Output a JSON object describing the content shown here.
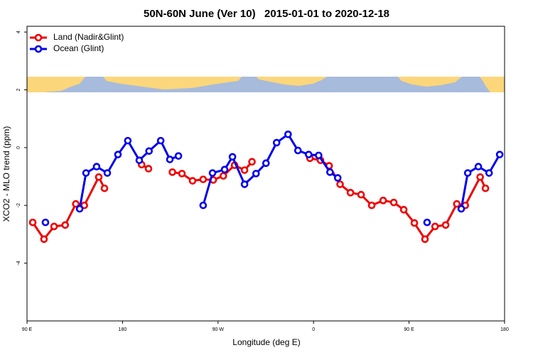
{
  "chart_data": {
    "type": "line",
    "title": "50N-60N June (Ver 10)   2015-01-01 to 2020-12-18",
    "x_label": "Longitude (deg E)",
    "y_label": "XCO2 - MLO trend (ppm)",
    "xlim": [
      90,
      540
    ],
    "ylim": [
      -6,
      4.2
    ],
    "xticks": [
      {
        "value": 90,
        "label": "90 E"
      },
      180,
      {
        "value": 270,
        "label": "90 W"
      },
      {
        "value": 360,
        "label": "0"
      },
      {
        "value": 450,
        "label": "90 E"
      },
      {
        "value": 540,
        "label": "180"
      }
    ],
    "yticks": [
      -4,
      -2,
      0,
      2,
      4
    ],
    "legend": "top-left",
    "series": [
      {
        "name": "Land (Nadir&Glint)",
        "color": "#ee0000",
        "x": [
          95.4,
          106,
          115.5,
          126,
          136,
          144,
          157.6,
          163,
          null,
          198,
          204.5,
          null,
          227,
          236,
          246,
          256,
          265.5,
          275,
          285.6,
          295,
          302,
          null,
          356.6,
          366.6,
          374.7,
          385,
          394.8,
          404.8,
          414.8,
          425.6,
          435.6,
          445,
          455,
          465,
          474.5,
          484.5,
          495,
          503,
          517,
          522
        ],
        "values": [
          -2.59,
          -3.17,
          -2.73,
          -2.68,
          -1.95,
          -2.0,
          -1.02,
          -1.41,
          null,
          -0.59,
          -0.73,
          null,
          -0.85,
          -0.9,
          -1.15,
          -1.1,
          -1.12,
          -0.98,
          -0.61,
          -0.78,
          -0.49,
          null,
          -0.37,
          -0.44,
          -0.63,
          -1.27,
          -1.56,
          -1.63,
          -2.0,
          -1.83,
          -1.9,
          -2.15,
          -2.61,
          -3.17,
          -2.73,
          -2.68,
          -1.95,
          -2.0,
          -1.02,
          -1.41
        ]
      },
      {
        "name": "Ocean (Glint)",
        "color": "#0000ee",
        "x": [
          107.4,
          null,
          139.6,
          145.6,
          155.6,
          165.7,
          175.7,
          185,
          195.8,
          205,
          216,
          224.6,
          232.7,
          null,
          256,
          264.8,
          276.2,
          283.6,
          295,
          305.8,
          315.2,
          325.2,
          336,
          345.3,
          355.4,
          364.8,
          375.5,
          382.8,
          null,
          467,
          null,
          499.2,
          505.3,
          515.3,
          525.4,
          535.4
        ],
        "values": [
          -2.59,
          null,
          -2.12,
          -0.88,
          -0.66,
          -0.88,
          -0.24,
          0.24,
          -0.44,
          -0.12,
          0.24,
          -0.41,
          -0.29,
          null,
          -2.0,
          -0.88,
          -0.76,
          -0.32,
          -1.27,
          -0.9,
          -0.54,
          0.17,
          0.46,
          -0.1,
          -0.24,
          -0.27,
          -0.85,
          -1.05,
          null,
          -2.59,
          null,
          -2.12,
          -0.88,
          -0.66,
          -0.88,
          -0.24
        ]
      }
    ]
  }
}
